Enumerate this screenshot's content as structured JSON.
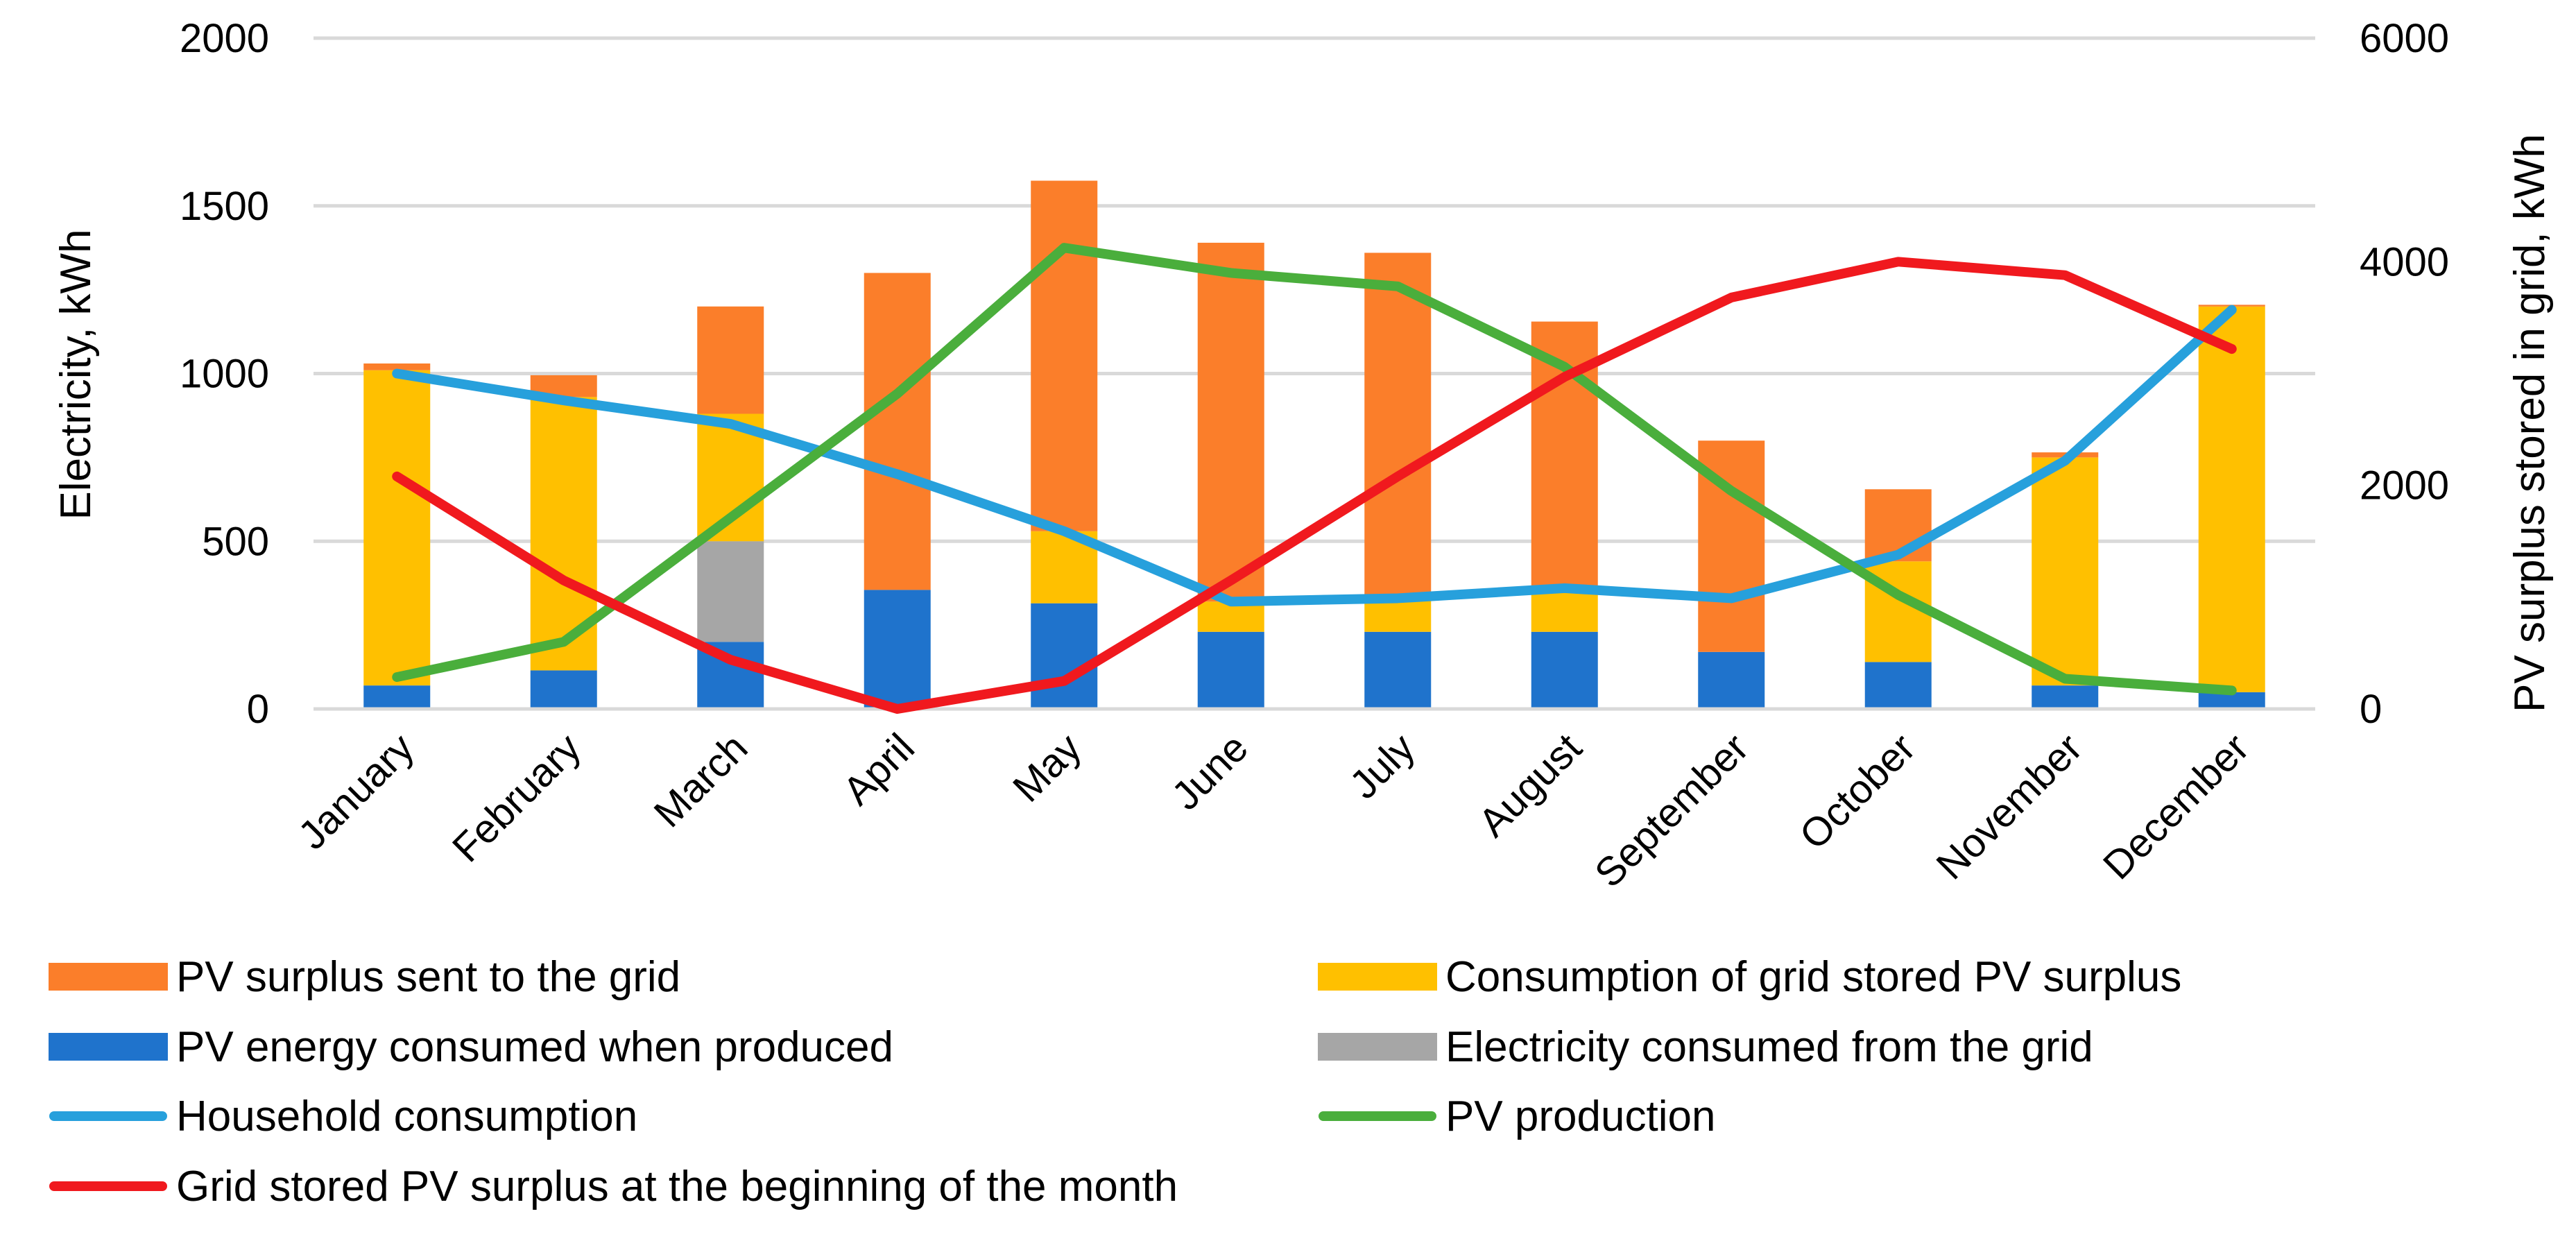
{
  "chart_data": {
    "type": "bar",
    "title": "",
    "categories": [
      "January",
      "February",
      "March",
      "April",
      "May",
      "June",
      "July",
      "August",
      "September",
      "October",
      "November",
      "December"
    ],
    "bar_series": [
      {
        "name": "PV energy consumed when produced",
        "color": "#1f73cc",
        "values": [
          70,
          115,
          200,
          355,
          315,
          230,
          230,
          230,
          170,
          140,
          70,
          50
        ]
      },
      {
        "name": "Electricity consumed from the grid",
        "color": "#a6a6a6",
        "values": [
          0,
          0,
          300,
          0,
          0,
          0,
          0,
          0,
          0,
          0,
          0,
          0
        ]
      },
      {
        "name": "Consumption of grid stored PV surplus",
        "color": "#ffc000",
        "values": [
          940,
          815,
          380,
          0,
          215,
          90,
          100,
          120,
          0,
          300,
          680,
          1150
        ]
      },
      {
        "name": "PV surplus sent to the grid",
        "color": "#fb7e2a",
        "values": [
          20,
          65,
          320,
          945,
          1045,
          1070,
          1030,
          805,
          630,
          215,
          15,
          5
        ]
      }
    ],
    "line_series": [
      {
        "name": "Household consumption",
        "axis": "left",
        "color": "#27a0dc",
        "values": [
          1000,
          920,
          850,
          700,
          530,
          320,
          330,
          360,
          330,
          460,
          740,
          1190
        ]
      },
      {
        "name": "PV production",
        "axis": "left",
        "color": "#4aae3c",
        "values": [
          95,
          200,
          570,
          940,
          1375,
          1300,
          1260,
          1020,
          650,
          340,
          90,
          55
        ]
      },
      {
        "name": "Grid stored PV surplus at the beginning of the month",
        "axis": "right",
        "color": "#f0191e",
        "values": [
          2080,
          1150,
          440,
          0,
          250,
          1150,
          2080,
          2970,
          3680,
          4000,
          3880,
          3220
        ]
      }
    ],
    "y_left": {
      "label": "Electricity, kWh",
      "min": 0,
      "max": 2000,
      "ticks": [
        0,
        500,
        1000,
        1500,
        2000
      ]
    },
    "y_right": {
      "label": "PV surplus stored in grid, kWh",
      "min": 0,
      "max": 6000,
      "ticks": [
        0,
        2000,
        4000,
        6000
      ]
    },
    "grid": true,
    "legend": {
      "placement": "bottom",
      "items": [
        {
          "label": "PV surplus sent to the grid",
          "kind": "box",
          "color": "#fb7e2a"
        },
        {
          "label": "Consumption of grid stored PV surplus",
          "kind": "box",
          "color": "#ffc000"
        },
        {
          "label": "PV energy consumed when produced",
          "kind": "box",
          "color": "#1f73cc"
        },
        {
          "label": "Electricity consumed from the grid",
          "kind": "box",
          "color": "#a6a6a6"
        },
        {
          "label": "Household consumption",
          "kind": "line",
          "color": "#27a0dc"
        },
        {
          "label": "PV production",
          "kind": "line",
          "color": "#4aae3c"
        },
        {
          "label": "Grid stored PV surplus at the beginning of the month",
          "kind": "line",
          "color": "#f0191e"
        }
      ]
    }
  }
}
